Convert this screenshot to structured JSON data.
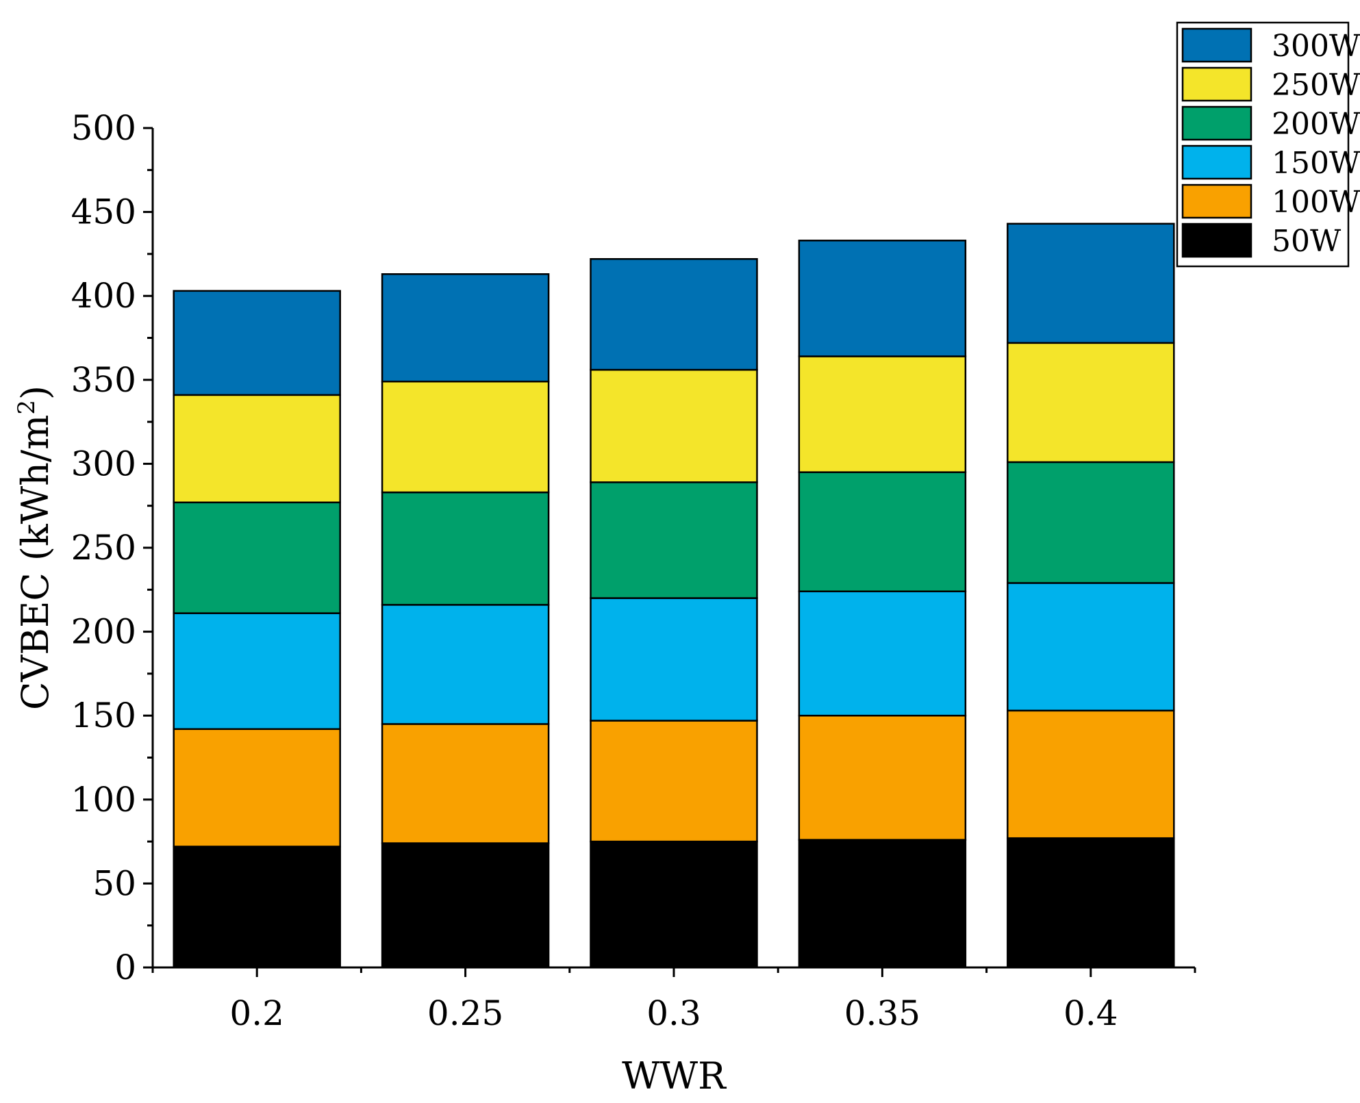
{
  "chart_data": {
    "type": "bar",
    "stacked": true,
    "title": "",
    "xlabel": "WWR",
    "ylabel": "CVBEC (kWh/m",
    "ylabel_sup": "2",
    "ylabel_close": ")",
    "ylim": [
      0,
      500
    ],
    "yticks": [
      "0",
      "50",
      "100",
      "150",
      "200",
      "250",
      "300",
      "350",
      "400",
      "450",
      "500"
    ],
    "categories": [
      "0.2",
      "0.25",
      "0.3",
      "0.35",
      "0.4"
    ],
    "legend_position": "top-right",
    "series": [
      {
        "name": "50W",
        "color": "#000000",
        "values": [
          72,
          74,
          75,
          76,
          77
        ]
      },
      {
        "name": "100W",
        "color": "#F9A100",
        "values": [
          70,
          71,
          72,
          74,
          76
        ]
      },
      {
        "name": "150W",
        "color": "#00B2EC",
        "values": [
          69,
          71,
          73,
          74,
          76
        ]
      },
      {
        "name": "200W",
        "color": "#00A06B",
        "values": [
          66,
          67,
          69,
          71,
          72
        ]
      },
      {
        "name": "250W",
        "color": "#F4E52A",
        "values": [
          64,
          66,
          67,
          69,
          71
        ]
      },
      {
        "name": "300W",
        "color": "#0071B3",
        "values": [
          62,
          64,
          66,
          69,
          71
        ]
      }
    ]
  }
}
